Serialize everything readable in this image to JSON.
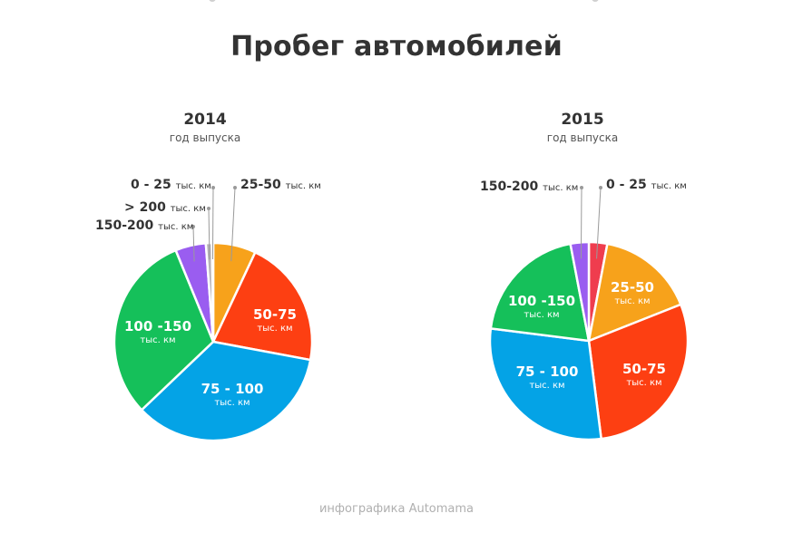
{
  "title": "Пробег автомобилей",
  "footer": "инфографика Automama",
  "chart_data": [
    {
      "type": "pie",
      "year": "2014",
      "subtitle": "год выпуска",
      "slices": [
        {
          "range": "25-50",
          "unit": "тыс. км",
          "value": 7.0,
          "color": "#f7a21b",
          "label_style": "outside"
        },
        {
          "range": "50-75",
          "unit": "тыс. км",
          "value": 21.0,
          "color": "#fd3f12",
          "label_style": "inside"
        },
        {
          "range": "75 - 100",
          "unit": "тыс. км",
          "value": 35.0,
          "color": "#04a3e6",
          "label_style": "inside"
        },
        {
          "range": "100 -150",
          "unit": "тыс. км",
          "value": 31.0,
          "color": "#15c05a",
          "label_style": "inside"
        },
        {
          "range": "150-200",
          "unit": "тыс. км",
          "value": 5.0,
          "color": "#9a5df0",
          "label_style": "outside"
        },
        {
          "range": "> 200",
          "unit": "тыс. км",
          "value": 1.0,
          "color": "#b6b2b8",
          "label_style": "outside"
        },
        {
          "range": "0 - 25",
          "unit": "тыс. км",
          "value": 0.2,
          "color": "#ef4753",
          "label_style": "outside"
        }
      ]
    },
    {
      "type": "pie",
      "year": "2015",
      "subtitle": "год выпуска",
      "slices": [
        {
          "range": "0 - 25",
          "unit": "тыс. км",
          "value": 3.0,
          "color": "#ef3d4e",
          "label_style": "outside"
        },
        {
          "range": "25-50",
          "unit": "тыс. км",
          "value": 16.0,
          "color": "#f7a21b",
          "label_style": "inside"
        },
        {
          "range": "50-75",
          "unit": "тыс. км",
          "value": 29.0,
          "color": "#fd3f12",
          "label_style": "inside"
        },
        {
          "range": "75 - 100",
          "unit": "тыс. км",
          "value": 29.0,
          "color": "#04a3e6",
          "label_style": "inside"
        },
        {
          "range": "100 -150",
          "unit": "тыс. км",
          "value": 20.0,
          "color": "#15c05a",
          "label_style": "inside"
        },
        {
          "range": "150-200",
          "unit": "тыс. км",
          "value": 3.0,
          "color": "#9a5df0",
          "label_style": "outside"
        }
      ]
    }
  ]
}
